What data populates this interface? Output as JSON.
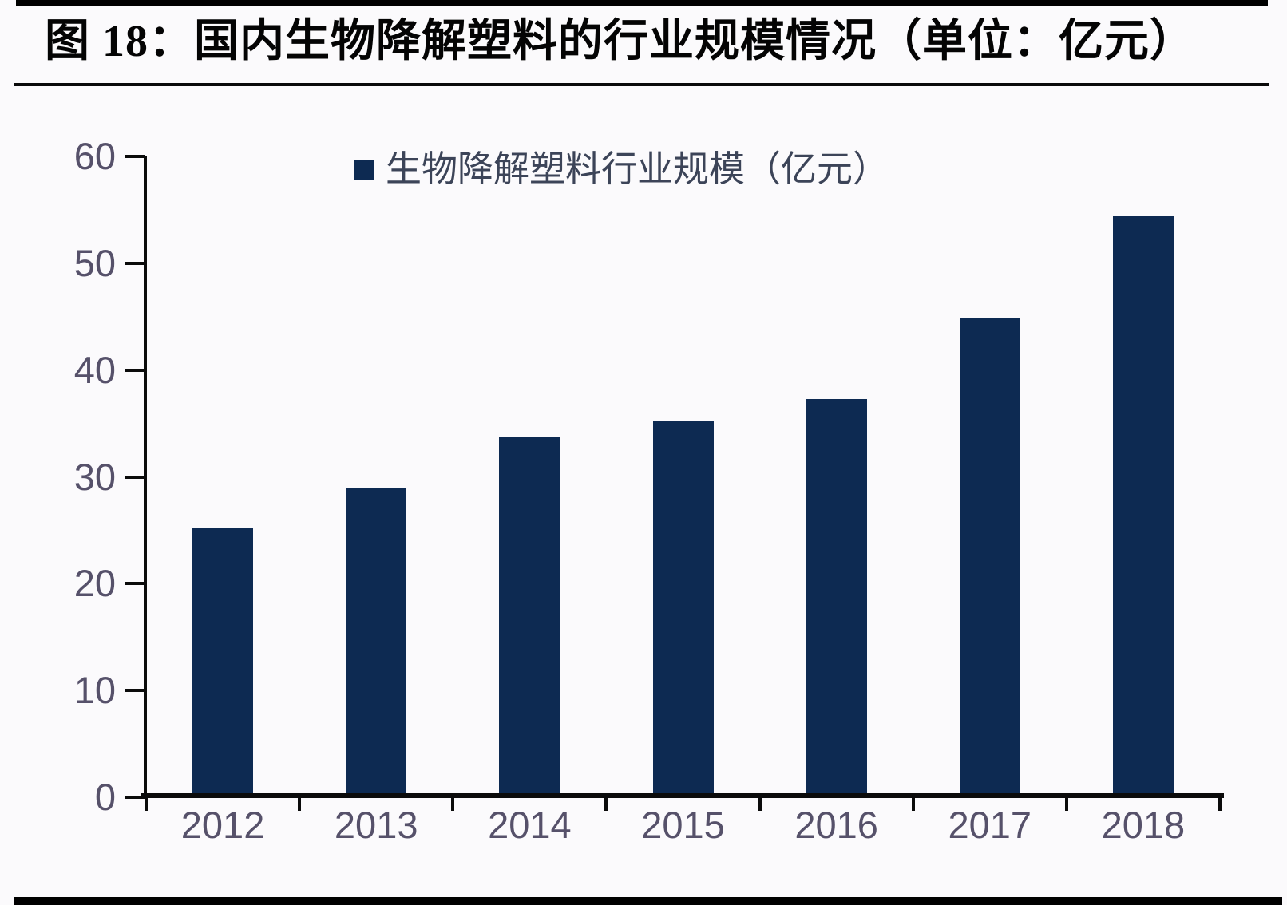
{
  "figure": {
    "title": "图 18：国内生物降解塑料的行业规模情况（单位：亿元）"
  },
  "chart_data": {
    "type": "bar",
    "title": "图 18：国内生物降解塑料的行业规模情况（单位：亿元）",
    "legend": "生物降解塑料行业规模（亿元）",
    "legend_position": "top-center",
    "categories": [
      "2012",
      "2013",
      "2014",
      "2015",
      "2016",
      "2017",
      "2018"
    ],
    "values": [
      25.2,
      29.0,
      33.8,
      35.2,
      37.3,
      44.8,
      54.4
    ],
    "xlabel": "",
    "ylabel": "",
    "ylim": [
      0,
      60
    ],
    "yticks": [
      0,
      10,
      20,
      30,
      40,
      50,
      60
    ],
    "grid": false,
    "bar_color": "#0d2a52",
    "axis_color": "#0b0b0b",
    "tick_label_color": "#56516a",
    "legend_text_color": "#3c4458",
    "background_color": "#fbfafc",
    "rule_color": "#000000"
  }
}
